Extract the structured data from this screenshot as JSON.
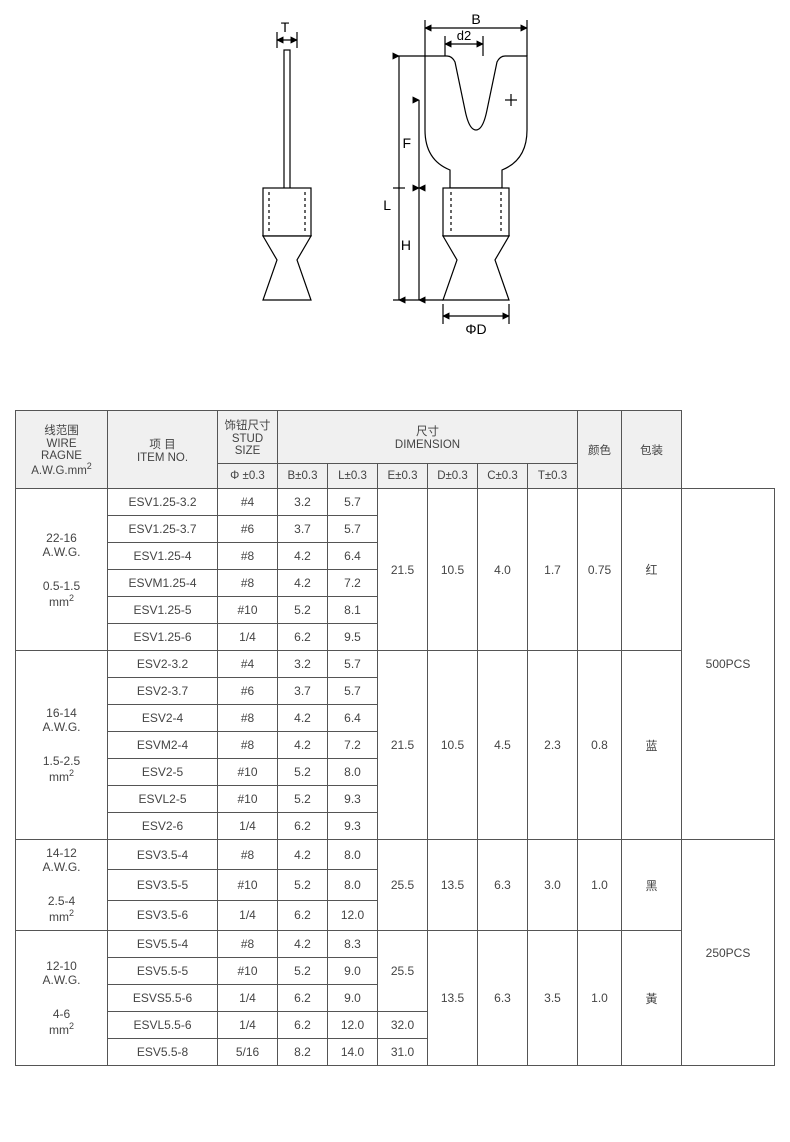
{
  "diagram": {
    "labels": {
      "T": "T",
      "B": "B",
      "d2": "d2",
      "F": "F",
      "L": "L",
      "H": "H",
      "phiD": "ΦD"
    },
    "stroke": "#000000",
    "fill": "#ffffff",
    "hatch": "#999999",
    "line_width": 1.2,
    "font_size": 14,
    "font_family": "Arial"
  },
  "headers": {
    "wire": {
      "zh": "线范围",
      "en1": "WIRE",
      "en2": "RAGNE",
      "unit": "A.W.G.mm²"
    },
    "item": {
      "zh": "项  目",
      "en": "ITEM NO."
    },
    "stud": {
      "zh": "饰钮尺寸",
      "en": "STUD SIZE",
      "phi": "Φ ±0.3"
    },
    "dim": {
      "zh": "尺寸",
      "en": "DIMENSION"
    },
    "color": "颜色",
    "pack": "包装",
    "cols": [
      "B±0.3",
      "L±0.3",
      "E±0.3",
      "D±0.3",
      "C±0.3",
      "T±0.3"
    ]
  },
  "groups": [
    {
      "wire": "22-16\nA.W.G.\n\n0.5-1.5\nmm²",
      "rows": [
        {
          "item": "ESV1.25-3.2",
          "phi": "#4",
          "B": "3.2",
          "L": "5.7"
        },
        {
          "item": "ESV1.25-3.7",
          "phi": "#6",
          "B": "3.7",
          "L": "5.7"
        },
        {
          "item": "ESV1.25-4",
          "phi": "#8",
          "B": "4.2",
          "L": "6.4"
        },
        {
          "item": "ESVM1.25-4",
          "phi": "#8",
          "B": "4.2",
          "L": "7.2"
        },
        {
          "item": "ESV1.25-5",
          "phi": "#10",
          "B": "5.2",
          "L": "8.1"
        },
        {
          "item": "ESV1.25-6",
          "phi": "1/4",
          "B": "6.2",
          "L": "9.5"
        }
      ],
      "E": "21.5",
      "D": "10.5",
      "C": "4.0",
      "C2": "1.7",
      "T": "0.75",
      "color": "红",
      "pack": "500PCS",
      "pack_span": 13
    },
    {
      "wire": "16-14\nA.W.G.\n\n1.5-2.5\nmm²",
      "rows": [
        {
          "item": "ESV2-3.2",
          "phi": "#4",
          "B": "3.2",
          "L": "5.7"
        },
        {
          "item": "ESV2-3.7",
          "phi": "#6",
          "B": "3.7",
          "L": "5.7"
        },
        {
          "item": "ESV2-4",
          "phi": "#8",
          "B": "4.2",
          "L": "6.4"
        },
        {
          "item": "ESVM2-4",
          "phi": "#8",
          "B": "4.2",
          "L": "7.2"
        },
        {
          "item": "ESV2-5",
          "phi": "#10",
          "B": "5.2",
          "L": "8.0"
        },
        {
          "item": "ESVL2-5",
          "phi": "#10",
          "B": "5.2",
          "L": "9.3"
        },
        {
          "item": "ESV2-6",
          "phi": "1/4",
          "B": "6.2",
          "L": "9.3"
        }
      ],
      "E": "21.5",
      "D": "10.5",
      "C": "4.5",
      "C2": "2.3",
      "T": "0.8",
      "color": "蓝"
    },
    {
      "wire": "14-12\nA.W.G.\n\n2.5-4\nmm²",
      "rows": [
        {
          "item": "ESV3.5-4",
          "phi": "#8",
          "B": "4.2",
          "L": "8.0"
        },
        {
          "item": "ESV3.5-5",
          "phi": "#10",
          "B": "5.2",
          "L": "8.0"
        },
        {
          "item": "ESV3.5-6",
          "phi": "1/4",
          "B": "6.2",
          "L": "12.0"
        }
      ],
      "E": "25.5",
      "D": "13.5",
      "C": "6.3",
      "C2": "3.0",
      "T": "1.0",
      "color": "黑",
      "pack": "250PCS",
      "pack_span": 8
    },
    {
      "wire": "12-10\nA.W.G.\n\n4-6\nmm²",
      "rows": [
        {
          "item": "ESV5.5-4",
          "phi": "#8",
          "B": "4.2",
          "L": "8.3",
          "E": "25.5",
          "E_span": 3
        },
        {
          "item": "ESV5.5-5",
          "phi": "#10",
          "B": "5.2",
          "L": "9.0"
        },
        {
          "item": "ESVS5.5-6",
          "phi": "1/4",
          "B": "6.2",
          "L": "9.0"
        },
        {
          "item": "ESVL5.5-6",
          "phi": "1/4",
          "B": "6.2",
          "L": "12.0",
          "E": "32.0"
        },
        {
          "item": "ESV5.5-8",
          "phi": "5/16",
          "B": "8.2",
          "L": "14.0",
          "E": "31.0"
        }
      ],
      "D": "13.5",
      "C": "6.3",
      "C2": "3.5",
      "T": "1.0",
      "color": "黃"
    }
  ],
  "table_style": {
    "border_color": "#555555",
    "header_bg": "#f0f0f0",
    "font_size": 12,
    "cell_color": "#444444"
  }
}
